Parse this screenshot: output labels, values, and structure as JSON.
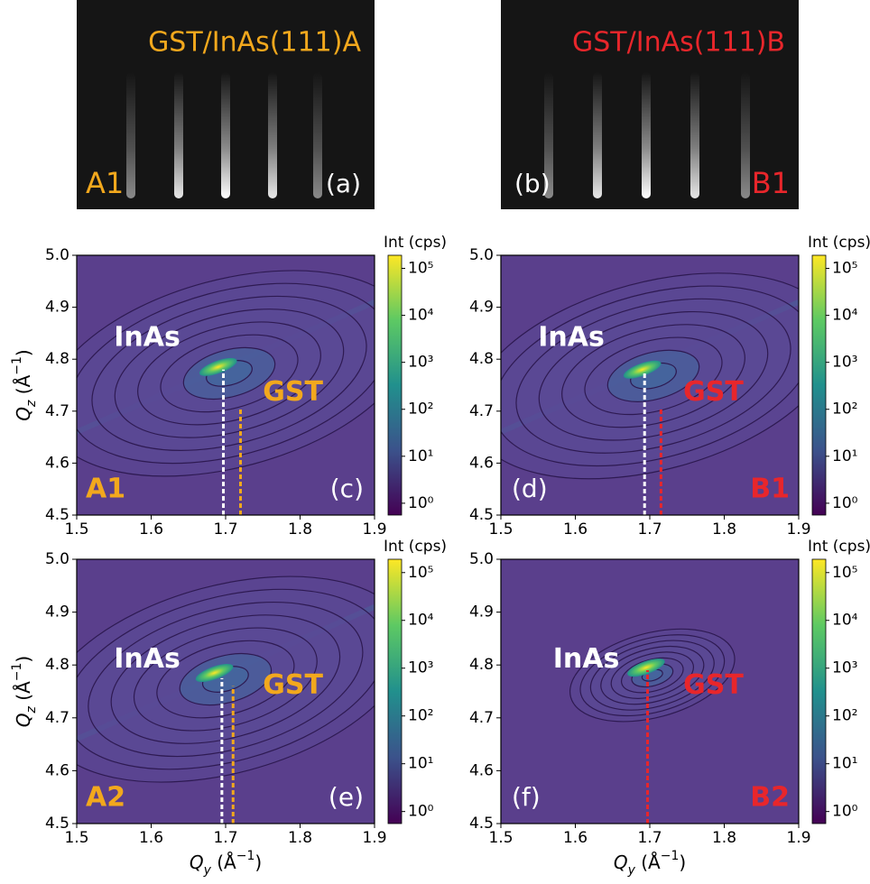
{
  "rheed": [
    {
      "title": "GST/InAs(111)A",
      "sample": "A1",
      "label": "(a)",
      "color": "#f2a81d"
    },
    {
      "title": "GST/InAs(111)B",
      "sample": "B1",
      "label": "(b)",
      "color": "#e8262b"
    }
  ],
  "chart_data": [
    {
      "type": "heatmap",
      "sample": "A1",
      "label": "(c)",
      "sample_color": "#f2a81d",
      "annotations": [
        {
          "text": "InAs",
          "color": "#ffffff"
        },
        {
          "text": "GST",
          "color": "#f2a81d"
        }
      ],
      "xlim": [
        1.5,
        1.9
      ],
      "ylim": [
        4.5,
        5.0
      ],
      "xticks": [
        1.5,
        1.6,
        1.7,
        1.8,
        1.9
      ],
      "yticks": [
        4.5,
        4.6,
        4.7,
        4.8,
        4.9,
        {
          "value": 5.0,
          "label": "5.0"
        }
      ],
      "ylabel": [
        "Q",
        "z",
        " (Å",
        "−1",
        ")"
      ],
      "peak": {
        "x": 1.69,
        "y": 4.785
      },
      "markers": [
        {
          "x": 1.697,
          "top": 4.78,
          "color": "#ffffff"
        },
        {
          "x": 1.72,
          "top": 4.705,
          "color": "#f2a81d"
        }
      ],
      "colorbar": {
        "title": "Int (cps)",
        "scale": "log",
        "lim": [
          0.56,
          190000
        ],
        "ticks": [
          {
            "value": 1,
            "label": "10⁰"
          },
          {
            "value": 10,
            "label": "10¹"
          },
          {
            "value": 100,
            "label": "10²"
          },
          {
            "value": 1000,
            "label": "10³"
          },
          {
            "value": 10000,
            "label": "10⁴"
          },
          {
            "value": 100000,
            "label": "10⁵"
          }
        ]
      }
    },
    {
      "type": "heatmap",
      "sample": "B1",
      "label": "(d)",
      "sample_color": "#e8262b",
      "annotations": [
        {
          "text": "InAs",
          "color": "#ffffff"
        },
        {
          "text": "GST",
          "color": "#e8262b"
        }
      ],
      "xlim": [
        1.5,
        1.9
      ],
      "ylim": [
        4.5,
        5.0
      ],
      "xticks": [
        1.5,
        1.6,
        1.7,
        1.8,
        1.9
      ],
      "yticks": [
        4.5,
        4.6,
        4.7,
        4.8,
        4.9,
        {
          "value": 5.0,
          "label": "5.0"
        }
      ],
      "peak": {
        "x": 1.69,
        "y": 4.78
      },
      "markers": [
        {
          "x": 1.693,
          "top": 4.775,
          "color": "#ffffff"
        },
        {
          "x": 1.715,
          "top": 4.705,
          "color": "#e8262b"
        }
      ],
      "colorbar": {
        "title": "Int (cps)",
        "scale": "log",
        "lim": [
          0.56,
          190000
        ],
        "ticks": [
          {
            "value": 1,
            "label": "10⁰"
          },
          {
            "value": 10,
            "label": "10¹"
          },
          {
            "value": 100,
            "label": "10²"
          },
          {
            "value": 1000,
            "label": "10³"
          },
          {
            "value": 10000,
            "label": "10⁴"
          },
          {
            "value": 100000,
            "label": "10⁵"
          }
        ]
      }
    },
    {
      "type": "heatmap",
      "sample": "A2",
      "label": "(e)",
      "sample_color": "#f2a81d",
      "annotations": [
        {
          "text": "InAs",
          "color": "#ffffff"
        },
        {
          "text": "GST",
          "color": "#f2a81d"
        }
      ],
      "xlim": [
        1.5,
        1.9
      ],
      "ylim": [
        4.5,
        5.0
      ],
      "xticks": [
        1.5,
        1.6,
        1.7,
        1.8,
        1.9
      ],
      "yticks": [
        4.5,
        4.6,
        4.7,
        4.8,
        4.9,
        {
          "value": 5.0,
          "label": "5.0"
        }
      ],
      "xlabel": [
        "Q",
        "y",
        " (Å",
        "−1",
        ")"
      ],
      "ylabel": [
        "Q",
        "z",
        " (Å",
        "−1",
        ")"
      ],
      "peak": {
        "x": 1.685,
        "y": 4.785
      },
      "markers": [
        {
          "x": 1.695,
          "top": 4.775,
          "color": "#ffffff"
        },
        {
          "x": 1.71,
          "top": 4.76,
          "color": "#f2a81d"
        }
      ],
      "colorbar": {
        "title": "Int (cps)",
        "scale": "log",
        "lim": [
          0.56,
          190000
        ],
        "ticks": [
          {
            "value": 1,
            "label": "10⁰"
          },
          {
            "value": 10,
            "label": "10¹"
          },
          {
            "value": 100,
            "label": "10²"
          },
          {
            "value": 1000,
            "label": "10³"
          },
          {
            "value": 10000,
            "label": "10⁴"
          },
          {
            "value": 100000,
            "label": "10⁵"
          }
        ]
      }
    },
    {
      "type": "heatmap",
      "sample": "B2",
      "label": "(f)",
      "sample_color": "#e8262b",
      "annotations": [
        {
          "text": "InAs",
          "color": "#ffffff"
        },
        {
          "text": "GST",
          "color": "#e8262b"
        }
      ],
      "xlim": [
        1.5,
        1.9
      ],
      "ylim": [
        4.5,
        5.0
      ],
      "xticks": [
        1.5,
        1.6,
        1.7,
        1.8,
        1.9
      ],
      "yticks": [
        4.5,
        4.6,
        4.7,
        4.8,
        4.9,
        {
          "value": 5.0,
          "label": "5.0"
        }
      ],
      "xlabel": [
        "Q",
        "y",
        " (Å",
        "−1",
        ")"
      ],
      "peak": {
        "x": 1.695,
        "y": 4.795
      },
      "markers": [
        {
          "x": 1.697,
          "top": 4.79,
          "color": "#e8262b"
        }
      ],
      "colorbar": {
        "title": "Int (cps)",
        "scale": "log",
        "lim": [
          0.56,
          190000
        ],
        "ticks": [
          {
            "value": 1,
            "label": "10⁰"
          },
          {
            "value": 10,
            "label": "10¹"
          },
          {
            "value": 100,
            "label": "10²"
          },
          {
            "value": 1000,
            "label": "10³"
          },
          {
            "value": 10000,
            "label": "10⁴"
          },
          {
            "value": 100000,
            "label": "10⁵"
          }
        ]
      }
    }
  ]
}
